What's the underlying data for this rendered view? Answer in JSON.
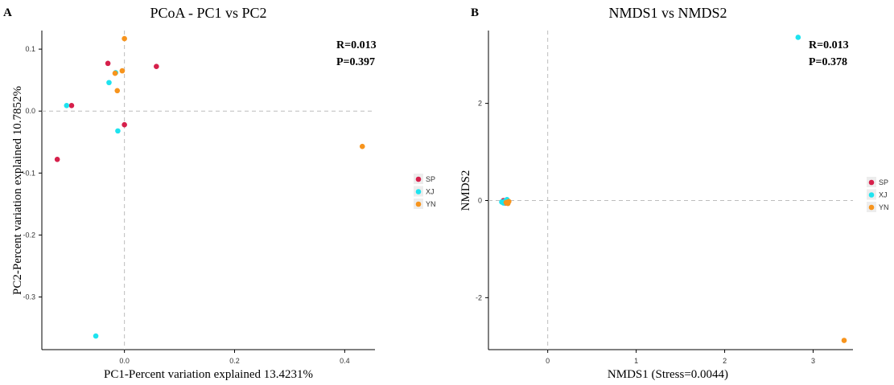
{
  "chart_data": [
    {
      "type": "scatter",
      "panel_label": "A",
      "title": "PCoA - PC1 vs PC2",
      "xlabel": "PC1-Percent variation explained 13.4231%",
      "ylabel": "PC2-Percent variation explained 10.7852%",
      "xlim": [
        -0.15,
        0.455
      ],
      "ylim": [
        -0.385,
        0.13
      ],
      "xticks": [
        0.0,
        0.2,
        0.4
      ],
      "xtick_labels": [
        "0.0",
        "0.2",
        "0.4"
      ],
      "yticks": [
        -0.3,
        -0.2,
        -0.1,
        0.0,
        0.1
      ],
      "ytick_labels": [
        "-0.3",
        "-0.2",
        "-0.1",
        "0.0",
        "0.1"
      ],
      "reference_lines": {
        "x": 0,
        "y": 0
      },
      "grid": false,
      "legend_position": "right",
      "stats": [
        "R=0.013",
        "P=0.397"
      ],
      "series": [
        {
          "name": "SP",
          "color": "#d6204b",
          "points": [
            [
              -0.03,
              0.077
            ],
            [
              0.058,
              0.072
            ],
            [
              -0.096,
              0.009
            ],
            [
              0.0,
              -0.022
            ],
            [
              -0.122,
              -0.078
            ]
          ]
        },
        {
          "name": "XJ",
          "color": "#1ee3ef",
          "points": [
            [
              -0.105,
              0.009
            ],
            [
              -0.028,
              0.046
            ],
            [
              -0.016,
              0.062
            ],
            [
              -0.012,
              -0.032
            ],
            [
              -0.052,
              -0.363
            ]
          ]
        },
        {
          "name": "YN",
          "color": "#f7941d",
          "points": [
            [
              0.0,
              0.117
            ],
            [
              -0.004,
              0.065
            ],
            [
              -0.017,
              0.061
            ],
            [
              -0.013,
              0.033
            ],
            [
              0.432,
              -0.057
            ]
          ]
        }
      ]
    },
    {
      "type": "scatter",
      "panel_label": "B",
      "title": "NMDS1 vs NMDS2",
      "xlabel": "NMDS1 (Stress=0.0044)",
      "ylabel": "NMDS2",
      "xlim": [
        -0.67,
        3.45
      ],
      "ylim": [
        -3.07,
        3.5
      ],
      "xticks": [
        0,
        1,
        2,
        3
      ],
      "xtick_labels": [
        "0",
        "1",
        "2",
        "3"
      ],
      "yticks": [
        -2,
        0,
        2
      ],
      "ytick_labels": [
        "-2",
        "0",
        "2"
      ],
      "reference_lines": {
        "x": 0,
        "y": 0
      },
      "grid": false,
      "legend_position": "right",
      "stats": [
        "R=0.013",
        "P=0.378"
      ],
      "series": [
        {
          "name": "SP",
          "color": "#d6204b",
          "points": [
            [
              -0.5,
              0.0
            ],
            [
              -0.49,
              -0.02
            ],
            [
              -0.47,
              -0.04
            ],
            [
              -0.46,
              0.0
            ],
            [
              -0.48,
              -0.05
            ]
          ]
        },
        {
          "name": "XJ",
          "color": "#1ee3ef",
          "points": [
            [
              2.83,
              3.36
            ],
            [
              -0.52,
              -0.03
            ],
            [
              -0.5,
              -0.05
            ],
            [
              -0.46,
              0.02
            ],
            [
              -0.48,
              -0.01
            ]
          ]
        },
        {
          "name": "YN",
          "color": "#f7941d",
          "points": [
            [
              3.35,
              -2.88
            ],
            [
              -0.47,
              -0.04
            ],
            [
              -0.45,
              -0.06
            ],
            [
              -0.44,
              -0.02
            ],
            [
              -0.46,
              -0.05
            ]
          ]
        }
      ]
    }
  ]
}
